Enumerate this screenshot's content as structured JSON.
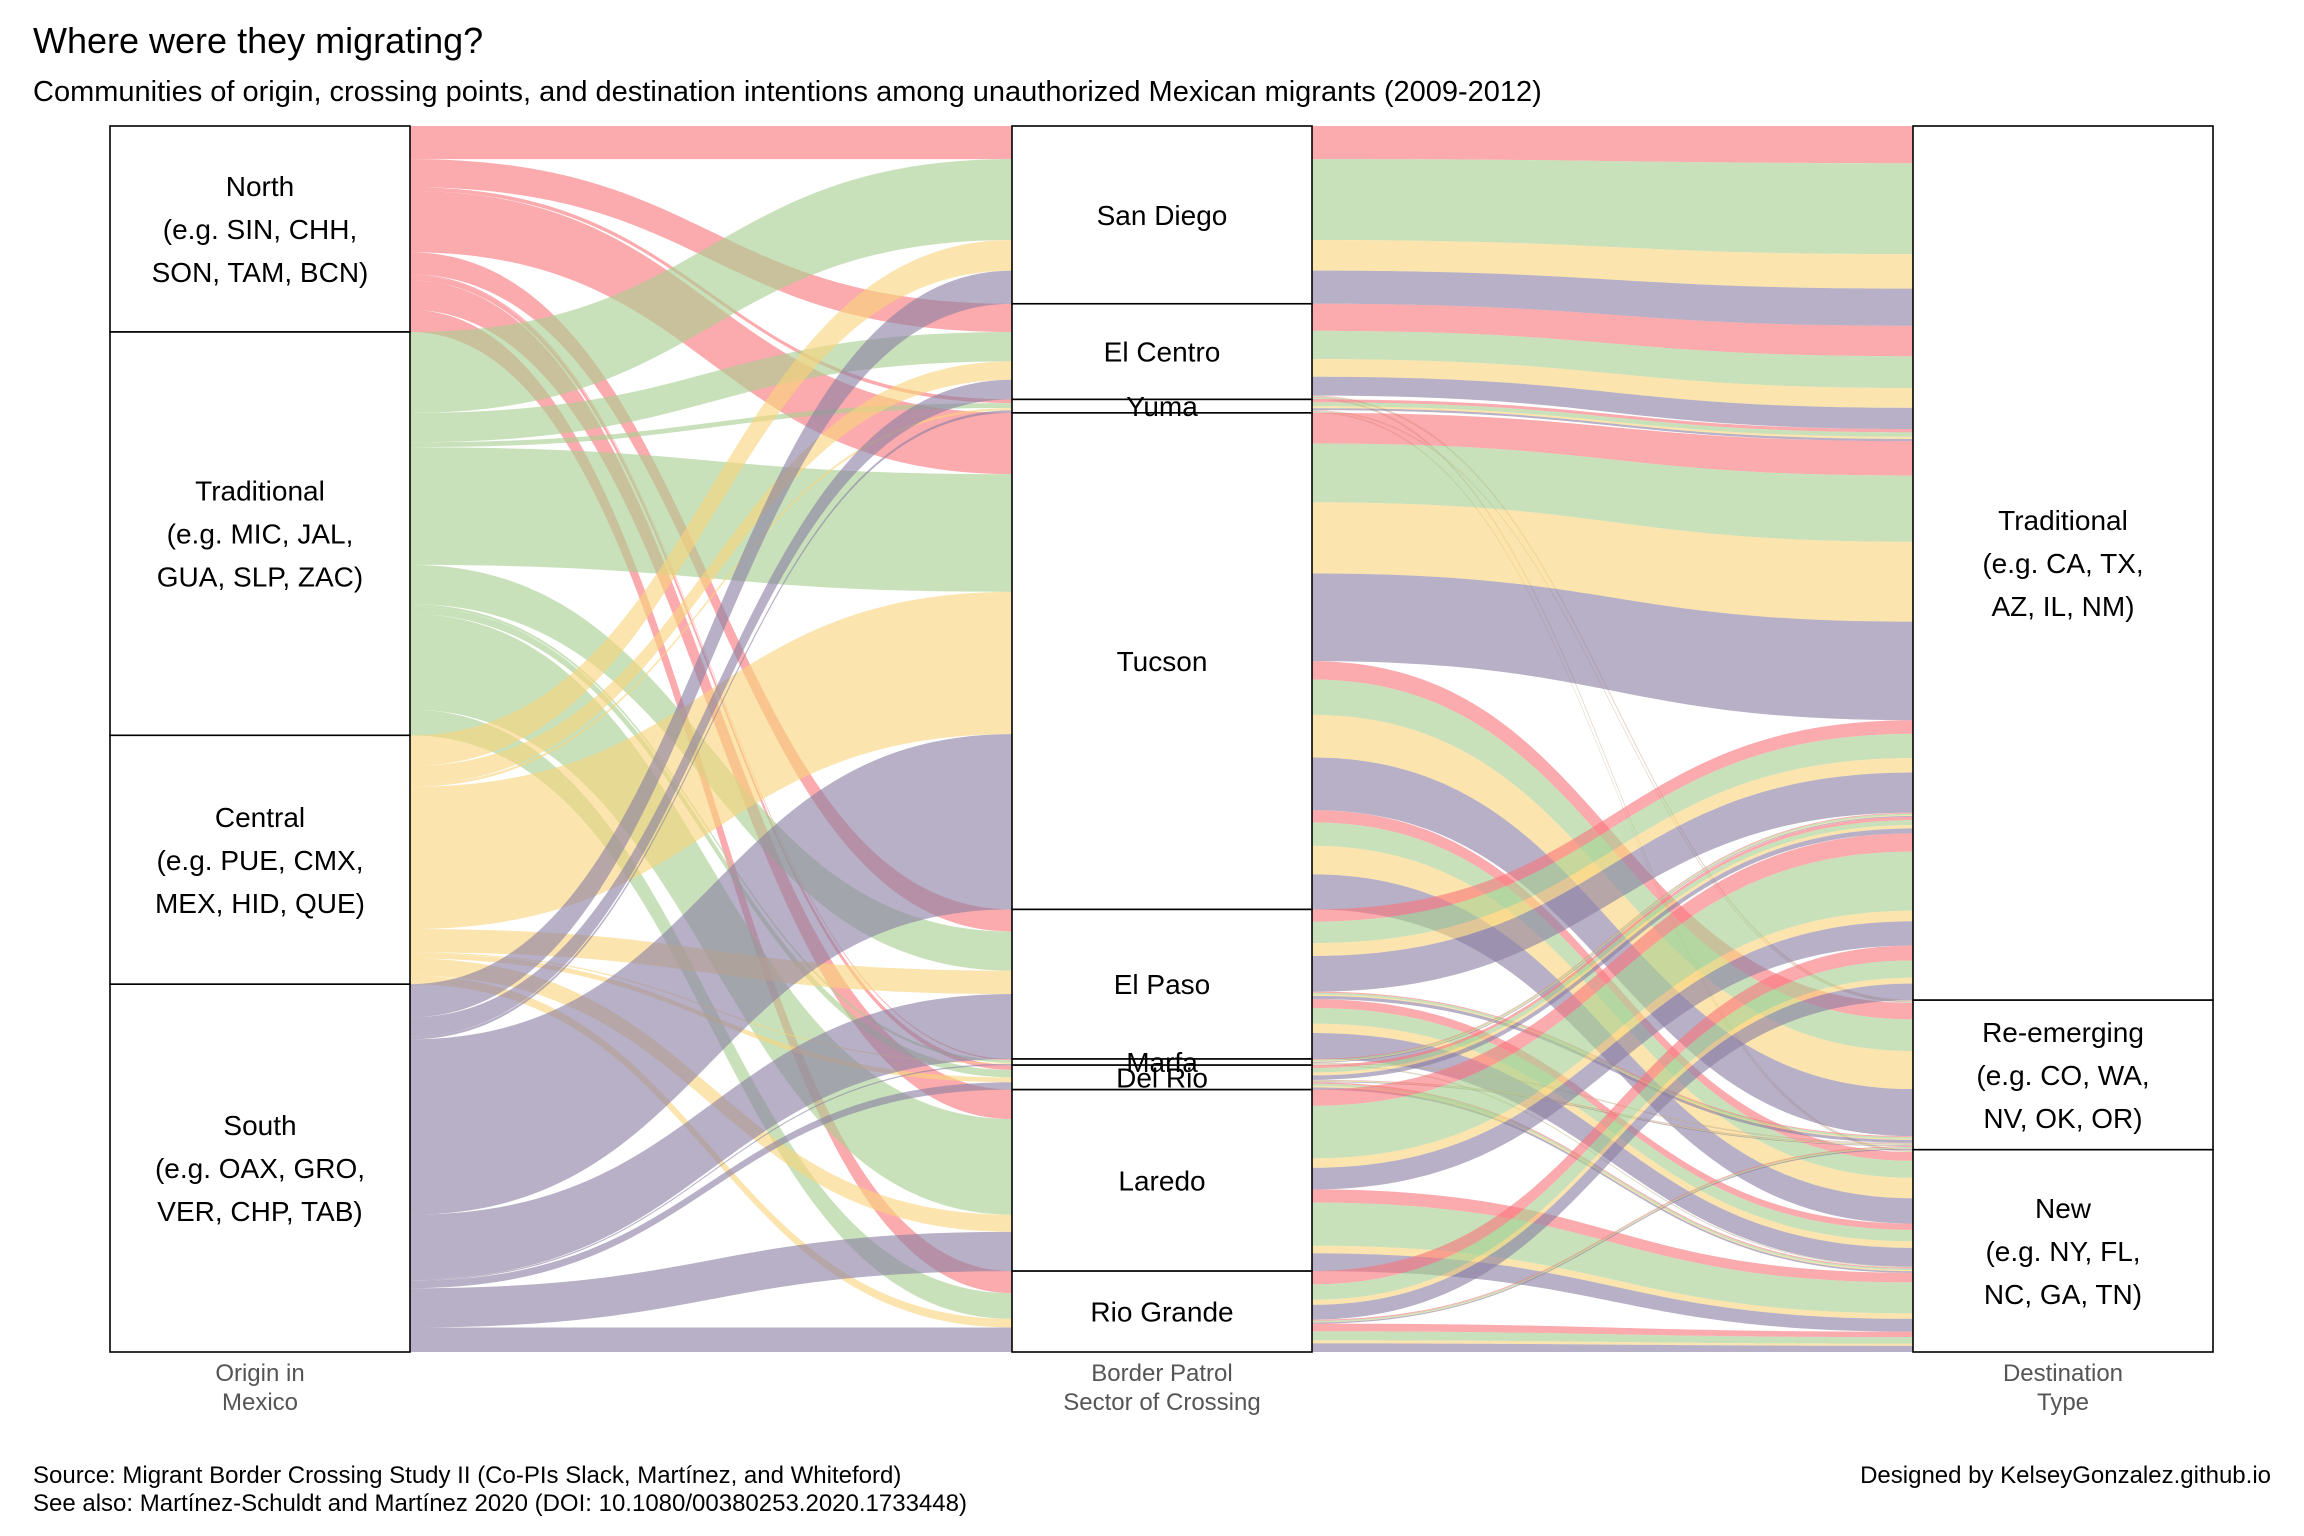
{
  "header": {
    "title": "Where were they migrating?",
    "subtitle": "Communities of origin, crossing points, and destination intentions among unauthorized Mexican migrants (2009-2012)"
  },
  "caption": {
    "source": "Source: Migrant Border Crossing Study II (Co-PIs Slack, Martínez, and Whiteford)",
    "see_also": "See also: Martínez-Schuldt and Martínez 2020 (DOI: 10.1080/00380253.2020.1733448)",
    "credit": "Designed by KelseyGonzalez.github.io"
  },
  "chart_data": {
    "type": "alluvial",
    "colors": {
      "North": "#f8767d",
      "Traditional": "#a8cf8f",
      "Central": "#f9d47a",
      "South": "#8a7fa3"
    },
    "axes": [
      {
        "key": "origin",
        "label_lines": [
          "Origin in",
          "Mexico"
        ],
        "nodes": [
          {
            "key": "North",
            "label_lines": [
              "North",
              "(e.g. SIN, CHH,",
              "SON, TAM, BCN)"
            ],
            "value": 16.8
          },
          {
            "key": "Traditional",
            "label_lines": [
              "Traditional",
              "(e.g. MIC, JAL,",
              "GUA, SLP, ZAC)"
            ],
            "value": 32.9
          },
          {
            "key": "Central",
            "label_lines": [
              "Central",
              "(e.g. PUE, CMX,",
              "MEX, HID, QUE)"
            ],
            "value": 20.3
          },
          {
            "key": "South",
            "label_lines": [
              "South",
              "(e.g. OAX, GRO,",
              "VER, CHP, TAB)"
            ],
            "value": 30.0
          }
        ]
      },
      {
        "key": "sector",
        "label_lines": [
          "Border Patrol",
          "Sector of Crossing"
        ],
        "nodes": [
          {
            "key": "San Diego",
            "label_lines": [
              "San Diego"
            ],
            "value": 14.5
          },
          {
            "key": "El Centro",
            "label_lines": [
              "El Centro"
            ],
            "value": 7.8
          },
          {
            "key": "Yuma",
            "label_lines": [
              "Yuma"
            ],
            "value": 1.1
          },
          {
            "key": "Tucson",
            "label_lines": [
              "Tucson"
            ],
            "value": 40.5
          },
          {
            "key": "El Paso",
            "label_lines": [
              "El Paso"
            ],
            "value": 12.2
          },
          {
            "key": "Marfa",
            "label_lines": [
              "Marfa"
            ],
            "value": 0.5
          },
          {
            "key": "Del Rio",
            "label_lines": [
              "Del Rio"
            ],
            "value": 2.0
          },
          {
            "key": "Laredo",
            "label_lines": [
              "Laredo"
            ],
            "value": 14.8
          },
          {
            "key": "Rio Grande",
            "label_lines": [
              "Rio Grande"
            ],
            "value": 6.6
          }
        ]
      },
      {
        "key": "destination",
        "label_lines": [
          "Destination",
          "Type"
        ],
        "nodes": [
          {
            "key": "Traditional",
            "label_lines": [
              "Traditional",
              "(e.g. CA, TX,",
              "AZ, IL, NM)"
            ],
            "value": 71.3
          },
          {
            "key": "Re-emerging",
            "label_lines": [
              "Re-emerging",
              "(e.g. CO, WA,",
              "NV, OK, OR)"
            ],
            "value": 12.2
          },
          {
            "key": "New",
            "label_lines": [
              "New",
              "(e.g. NY, FL,",
              "NC, GA, TN)"
            ],
            "value": 16.5
          }
        ]
      }
    ],
    "flows_origin_to_sector": [
      {
        "origin": "North",
        "sector": "San Diego",
        "value": 2.7
      },
      {
        "origin": "North",
        "sector": "El Centro",
        "value": 2.3
      },
      {
        "origin": "North",
        "sector": "Yuma",
        "value": 0.3
      },
      {
        "origin": "North",
        "sector": "Tucson",
        "value": 5.0
      },
      {
        "origin": "North",
        "sector": "El Paso",
        "value": 1.8
      },
      {
        "origin": "North",
        "sector": "Marfa",
        "value": 0.1
      },
      {
        "origin": "North",
        "sector": "Del Rio",
        "value": 0.4
      },
      {
        "origin": "North",
        "sector": "Laredo",
        "value": 2.4
      },
      {
        "origin": "North",
        "sector": "Rio Grande",
        "value": 1.8
      },
      {
        "origin": "Traditional",
        "sector": "San Diego",
        "value": 6.6
      },
      {
        "origin": "Traditional",
        "sector": "El Centro",
        "value": 2.4
      },
      {
        "origin": "Traditional",
        "sector": "Yuma",
        "value": 0.4
      },
      {
        "origin": "Traditional",
        "sector": "Tucson",
        "value": 9.6
      },
      {
        "origin": "Traditional",
        "sector": "El Paso",
        "value": 3.2
      },
      {
        "origin": "Traditional",
        "sector": "Marfa",
        "value": 0.2
      },
      {
        "origin": "Traditional",
        "sector": "Del Rio",
        "value": 0.6
      },
      {
        "origin": "Traditional",
        "sector": "Laredo",
        "value": 7.8
      },
      {
        "origin": "Traditional",
        "sector": "Rio Grande",
        "value": 2.1
      },
      {
        "origin": "Central",
        "sector": "San Diego",
        "value": 2.5
      },
      {
        "origin": "Central",
        "sector": "El Centro",
        "value": 1.5
      },
      {
        "origin": "Central",
        "sector": "Yuma",
        "value": 0.2
      },
      {
        "origin": "Central",
        "sector": "Tucson",
        "value": 11.6
      },
      {
        "origin": "Central",
        "sector": "El Paso",
        "value": 1.9
      },
      {
        "origin": "Central",
        "sector": "Marfa",
        "value": 0.1
      },
      {
        "origin": "Central",
        "sector": "Del Rio",
        "value": 0.4
      },
      {
        "origin": "Central",
        "sector": "Laredo",
        "value": 1.4
      },
      {
        "origin": "Central",
        "sector": "Rio Grande",
        "value": 0.7
      },
      {
        "origin": "South",
        "sector": "San Diego",
        "value": 2.7
      },
      {
        "origin": "South",
        "sector": "El Centro",
        "value": 1.6
      },
      {
        "origin": "South",
        "sector": "Yuma",
        "value": 0.2
      },
      {
        "origin": "South",
        "sector": "Tucson",
        "value": 14.3
      },
      {
        "origin": "South",
        "sector": "El Paso",
        "value": 5.3
      },
      {
        "origin": "South",
        "sector": "Marfa",
        "value": 0.1
      },
      {
        "origin": "South",
        "sector": "Del Rio",
        "value": 0.6
      },
      {
        "origin": "South",
        "sector": "Laredo",
        "value": 3.2
      },
      {
        "origin": "South",
        "sector": "Rio Grande",
        "value": 2.0
      }
    ],
    "destination_share_by_sector": {
      "San Diego": {
        "Traditional": 1.0,
        "Re-emerging": 0.0,
        "New": 0.0
      },
      "El Centro": {
        "Traditional": 0.96,
        "Re-emerging": 0.02,
        "New": 0.02
      },
      "Yuma": {
        "Traditional": 0.8,
        "Re-emerging": 0.1,
        "New": 0.1
      },
      "Tucson": {
        "Traditional": 0.5,
        "Re-emerging": 0.3,
        "New": 0.2
      },
      "El Paso": {
        "Traditional": 0.55,
        "Re-emerging": 0.05,
        "New": 0.4
      },
      "Marfa": {
        "Traditional": 0.6,
        "Re-emerging": 0.2,
        "New": 0.2
      },
      "Del Rio": {
        "Traditional": 0.6,
        "Re-emerging": 0.1,
        "New": 0.3
      },
      "Laredo": {
        "Traditional": 0.55,
        "Re-emerging": 0.0,
        "New": 0.45
      },
      "Rio Grande": {
        "Traditional": 0.6,
        "Re-emerging": 0.05,
        "New": 0.35
      }
    }
  }
}
